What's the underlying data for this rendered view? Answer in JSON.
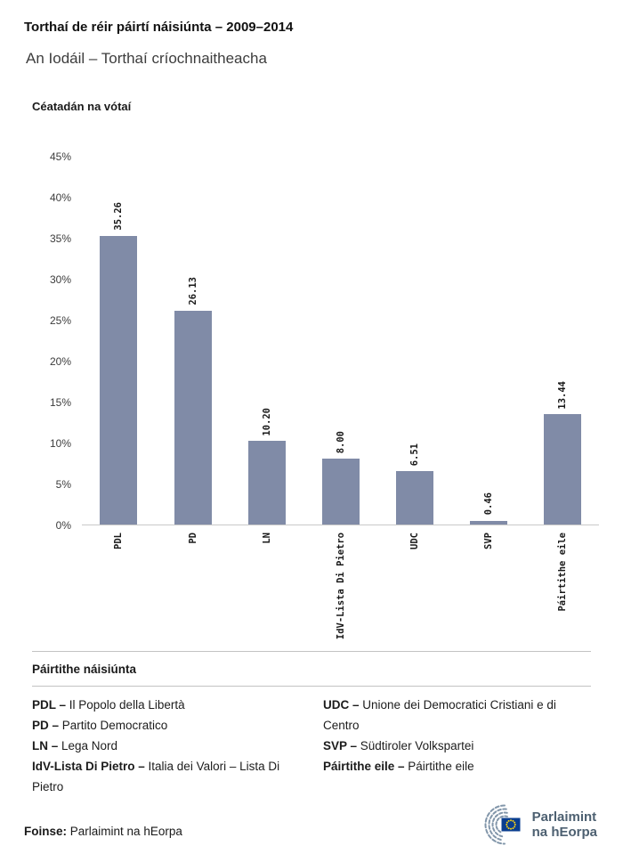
{
  "header": {
    "title": "Torthaí de réir páirtí náisiúnta – 2009–2014",
    "subtitle": "An Iodáil – Torthaí críochnaitheacha"
  },
  "chart_data": {
    "type": "bar",
    "title": "Céatadán na vótaí",
    "categories": [
      "PDL",
      "PD",
      "LN",
      "IdV-Lista Di Pietro",
      "UDC",
      "SVP",
      "Páirtithe eile"
    ],
    "values": [
      35.26,
      26.13,
      10.2,
      8.0,
      6.51,
      0.46,
      13.44
    ],
    "value_labels": [
      "35.26",
      "26.13",
      "10.20",
      "8.00",
      "6.51",
      "0.46",
      "13.44"
    ],
    "xlabel": "",
    "ylabel": "Céatadán na vótaí",
    "ylim": [
      0,
      45
    ],
    "yticks": [
      "0%",
      "5%",
      "10%",
      "15%",
      "20%",
      "25%",
      "30%",
      "35%",
      "40%",
      "45%"
    ],
    "grid": false,
    "bar_color": "#808BA7"
  },
  "legend": {
    "heading": "Páirtithe náisiúnta",
    "columns": [
      [
        {
          "abbr": "PDL –",
          "name": "Il Popolo della Libertà"
        },
        {
          "abbr": "PD –",
          "name": "Partito Democratico"
        },
        {
          "abbr": "LN –",
          "name": "Lega Nord"
        },
        {
          "abbr": "IdV-Lista Di Pietro –",
          "name": "Italia dei Valori – Lista Di Pietro"
        }
      ],
      [
        {
          "abbr": "UDC –",
          "name": "Unione dei Democratici Cristiani e di Centro"
        },
        {
          "abbr": "SVP –",
          "name": "Südtiroler Volkspartei"
        },
        {
          "abbr": "Páirtithe eile –",
          "name": "Páirtithe eile"
        }
      ]
    ]
  },
  "footer": {
    "source_label": "Foinse:",
    "source": "Parlaimint na hEorpa"
  },
  "logo": {
    "line1": "Parlaimint",
    "line2": "na hEorpa",
    "flag_color": "#0a3e8f",
    "star_color": "#f7d117",
    "arc_color": "#8296aa"
  }
}
